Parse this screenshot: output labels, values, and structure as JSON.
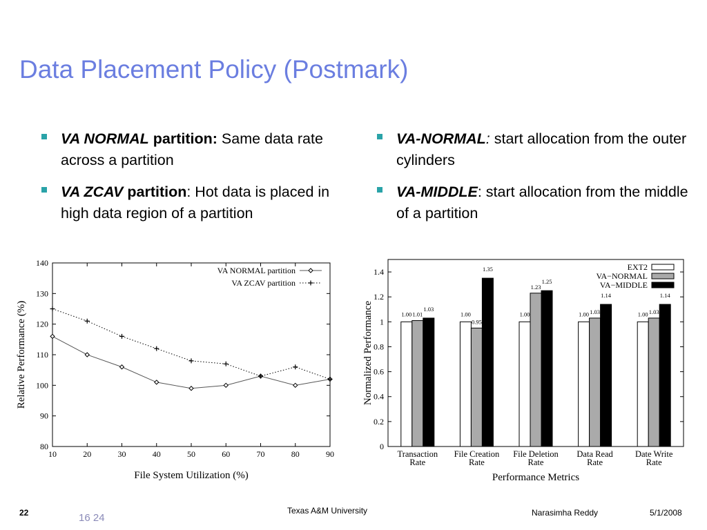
{
  "title": "Data Placement Policy (Postmark)",
  "left_bullets": [
    {
      "bold_italic": "VA NORMAL",
      "bold": " partition:",
      "text": " Same data rate across a partition"
    },
    {
      "bold_italic": "VA ZCAV",
      "bold": " partition",
      "text": ": Hot data is placed in high data region of a partition"
    }
  ],
  "right_bullets": [
    {
      "bold_italic": "VA-NORMAL",
      "italic_colon": ":",
      "text": " start allocation from the outer cylinders"
    },
    {
      "bold_italic": "VA-MIDDLE",
      "text": ": start allocation from the middle of a partition"
    }
  ],
  "footer": {
    "slide_number": "22",
    "page_pair": "16 24",
    "center": "Texas A&M University",
    "author": "Narasimha Reddy",
    "date": "5/1/2008"
  },
  "chart_data": [
    {
      "type": "line",
      "xlabel": "File System Utilization (%)",
      "ylabel": "Relative Performance (%)",
      "x": [
        10,
        20,
        30,
        40,
        50,
        60,
        70,
        80,
        90
      ],
      "xlim": [
        10,
        90
      ],
      "ylim": [
        80,
        140
      ],
      "xticks": [
        10,
        20,
        30,
        40,
        50,
        60,
        70,
        80,
        90
      ],
      "yticks": [
        80,
        90,
        100,
        110,
        120,
        130,
        140
      ],
      "legend_position": "top-right",
      "series": [
        {
          "name": "VA NORMAL partition",
          "marker": "diamond",
          "line": "solid",
          "color": "#555555",
          "values": [
            116,
            110,
            106,
            101,
            99,
            100,
            103,
            100,
            102
          ]
        },
        {
          "name": "VA ZCAV partition",
          "marker": "plus",
          "line": "dotted",
          "color": "#000000",
          "values": [
            125,
            121,
            116,
            112,
            108,
            107,
            103,
            106,
            102
          ]
        }
      ]
    },
    {
      "type": "bar",
      "xlabel": "Performance Metrics",
      "ylabel": "Normalized Performance",
      "categories": [
        [
          "Transaction",
          "Rate"
        ],
        [
          "File  Creation",
          "Rate"
        ],
        [
          "File  Deletion",
          "Rate"
        ],
        [
          "Data Read",
          "Rate"
        ],
        [
          "Date Write",
          "Rate"
        ]
      ],
      "ylim": [
        0,
        1.5
      ],
      "yticks": [
        0,
        0.2,
        0.4,
        0.6,
        0.8,
        1,
        1.2,
        1.4
      ],
      "ytick_labels": [
        "0",
        "0.2",
        "0.4",
        "0.6",
        "0.8",
        "1",
        "1.2",
        "1.4"
      ],
      "legend_position": "top-right",
      "series": [
        {
          "name": "EXT2",
          "color": "#ffffff",
          "values": [
            1.0,
            1.0,
            1.0,
            1.0,
            1.0
          ],
          "labels": [
            "1.00",
            "1.00",
            "1.00",
            "1.00",
            "1.00"
          ]
        },
        {
          "name": "VA−NORMAL",
          "color": "#aaaaaa",
          "values": [
            1.01,
            0.95,
            1.23,
            1.03,
            1.03
          ],
          "labels": [
            "1.01",
            "0.95",
            "1.23",
            "1.03",
            "1.03"
          ]
        },
        {
          "name": "VA−MIDDLE",
          "color": "#000000",
          "values": [
            1.03,
            1.35,
            1.25,
            1.14,
            1.14
          ],
          "labels": [
            "1.03",
            "1.35",
            "1.25",
            "1.14",
            "1.14"
          ]
        }
      ]
    }
  ]
}
